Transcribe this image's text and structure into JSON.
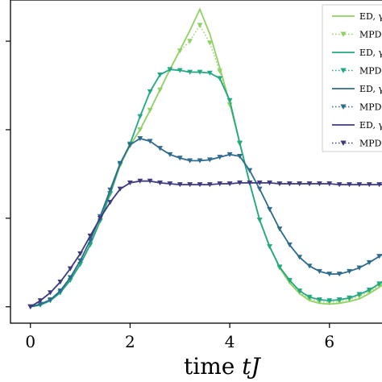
{
  "chart_data": {
    "type": "line",
    "title": "",
    "xlabel": "time tJ",
    "xlabel_parts": [
      "time ",
      "tJ"
    ],
    "ylabel": "",
    "xlim": [
      -0.4,
      7.2
    ],
    "ylim": [
      -0.0185,
      0.3465
    ],
    "xticks": [
      0,
      2,
      4,
      6
    ],
    "xtick_labels": [
      "0",
      "2",
      "4",
      "6"
    ],
    "yticks": [
      0,
      0.1,
      0.2,
      0.3
    ],
    "legend_position": "top-right",
    "legend_labels": [
      "ED, γ",
      "MPDO",
      "ED, γ",
      "MPDO",
      "ED, γ",
      "MPDO",
      "ED, γ",
      "MPDO"
    ],
    "series": [
      {
        "name": "ED, γ",
        "style": "solid",
        "color": "#8fd163",
        "x": [
          0,
          0.2,
          0.4,
          0.6,
          0.8,
          1.0,
          1.2,
          1.4,
          1.6,
          1.8,
          2.0,
          2.2,
          2.4,
          2.6,
          2.8,
          3.0,
          3.2,
          3.4,
          3.6,
          3.8,
          4.0,
          4.2,
          4.4,
          4.6,
          4.8,
          5.0,
          5.2,
          5.4,
          5.6,
          5.8,
          6.0,
          6.2,
          6.4,
          6.6,
          6.8,
          7.0,
          7.2
        ],
        "y": [
          0.0,
          0.002,
          0.007,
          0.016,
          0.03,
          0.048,
          0.07,
          0.097,
          0.127,
          0.16,
          0.182,
          0.2,
          0.222,
          0.245,
          0.268,
          0.29,
          0.312,
          0.336,
          0.308,
          0.27,
          0.23,
          0.185,
          0.14,
          0.098,
          0.068,
          0.044,
          0.027,
          0.015,
          0.007,
          0.004,
          0.003,
          0.004,
          0.006,
          0.009,
          0.015,
          0.022,
          0.03
        ]
      },
      {
        "name": "MPDO",
        "style": "dotted",
        "color": "#8fd163",
        "x": [
          0,
          0.2,
          0.4,
          0.6,
          0.8,
          1.0,
          1.2,
          1.4,
          1.6,
          1.8,
          2.0,
          2.2,
          2.4,
          2.6,
          2.8,
          3.0,
          3.2,
          3.4,
          3.6,
          3.8,
          4.0,
          4.2,
          4.4,
          4.6,
          4.8,
          5.0,
          5.2,
          5.4,
          5.6,
          5.8,
          6.0,
          6.2,
          6.4,
          6.6,
          6.8,
          7.0,
          7.2
        ],
        "y": [
          0.0,
          0.002,
          0.007,
          0.016,
          0.03,
          0.048,
          0.07,
          0.097,
          0.127,
          0.16,
          0.182,
          0.2,
          0.222,
          0.245,
          0.268,
          0.289,
          0.3,
          0.318,
          0.298,
          0.266,
          0.228,
          0.184,
          0.14,
          0.098,
          0.068,
          0.044,
          0.028,
          0.016,
          0.009,
          0.006,
          0.005,
          0.006,
          0.008,
          0.012,
          0.017,
          0.024,
          0.032
        ]
      },
      {
        "name": "ED, γ",
        "style": "solid",
        "color": "#22a884",
        "x": [
          0,
          0.2,
          0.4,
          0.6,
          0.8,
          1.0,
          1.2,
          1.4,
          1.6,
          1.8,
          2.0,
          2.2,
          2.4,
          2.6,
          2.8,
          3.0,
          3.2,
          3.4,
          3.6,
          3.8,
          4.0,
          4.2,
          4.4,
          4.6,
          4.8,
          5.0,
          5.2,
          5.4,
          5.6,
          5.8,
          6.0,
          6.2,
          6.4,
          6.6,
          6.8,
          7.0,
          7.2
        ],
        "y": [
          0.0,
          0.002,
          0.007,
          0.016,
          0.03,
          0.048,
          0.07,
          0.097,
          0.128,
          0.161,
          0.184,
          0.215,
          0.243,
          0.262,
          0.268,
          0.267,
          0.265,
          0.265,
          0.264,
          0.258,
          0.233,
          0.185,
          0.14,
          0.098,
          0.068,
          0.045,
          0.03,
          0.018,
          0.011,
          0.008,
          0.007,
          0.008,
          0.01,
          0.014,
          0.019,
          0.026,
          0.034
        ]
      },
      {
        "name": "MPDO",
        "style": "dotted",
        "color": "#22a884",
        "x": [
          0,
          0.2,
          0.4,
          0.6,
          0.8,
          1.0,
          1.2,
          1.4,
          1.6,
          1.8,
          2.0,
          2.2,
          2.4,
          2.6,
          2.8,
          3.0,
          3.2,
          3.4,
          3.6,
          3.8,
          4.0,
          4.2,
          4.4,
          4.6,
          4.8,
          5.0,
          5.2,
          5.4,
          5.6,
          5.8,
          6.0,
          6.2,
          6.4,
          6.6,
          6.8,
          7.0,
          7.2
        ],
        "y": [
          0.0,
          0.002,
          0.007,
          0.016,
          0.03,
          0.048,
          0.07,
          0.097,
          0.128,
          0.161,
          0.184,
          0.215,
          0.243,
          0.262,
          0.268,
          0.267,
          0.265,
          0.265,
          0.264,
          0.258,
          0.233,
          0.185,
          0.14,
          0.098,
          0.068,
          0.045,
          0.03,
          0.018,
          0.011,
          0.008,
          0.007,
          0.008,
          0.01,
          0.014,
          0.019,
          0.026,
          0.034
        ]
      },
      {
        "name": "ED, γ",
        "style": "solid",
        "color": "#2f6b8e",
        "x": [
          0,
          0.2,
          0.4,
          0.6,
          0.8,
          1.0,
          1.2,
          1.4,
          1.6,
          1.8,
          2.0,
          2.2,
          2.4,
          2.6,
          2.8,
          3.0,
          3.2,
          3.4,
          3.6,
          3.8,
          4.0,
          4.2,
          4.4,
          4.6,
          4.8,
          5.0,
          5.2,
          5.4,
          5.6,
          5.8,
          6.0,
          6.2,
          6.4,
          6.6,
          6.8,
          7.0,
          7.2
        ],
        "y": [
          0.0,
          0.003,
          0.008,
          0.018,
          0.033,
          0.052,
          0.075,
          0.102,
          0.132,
          0.162,
          0.183,
          0.19,
          0.187,
          0.179,
          0.172,
          0.168,
          0.165,
          0.165,
          0.166,
          0.169,
          0.172,
          0.17,
          0.154,
          0.133,
          0.11,
          0.088,
          0.07,
          0.056,
          0.046,
          0.04,
          0.037,
          0.037,
          0.04,
          0.044,
          0.05,
          0.057,
          0.064
        ]
      },
      {
        "name": "MPDO",
        "style": "dotted",
        "color": "#2f6b8e",
        "x": [
          0,
          0.2,
          0.4,
          0.6,
          0.8,
          1.0,
          1.2,
          1.4,
          1.6,
          1.8,
          2.0,
          2.2,
          2.4,
          2.6,
          2.8,
          3.0,
          3.2,
          3.4,
          3.6,
          3.8,
          4.0,
          4.2,
          4.4,
          4.6,
          4.8,
          5.0,
          5.2,
          5.4,
          5.6,
          5.8,
          6.0,
          6.2,
          6.4,
          6.6,
          6.8,
          7.0,
          7.2
        ],
        "y": [
          0.0,
          0.003,
          0.008,
          0.018,
          0.033,
          0.052,
          0.075,
          0.102,
          0.132,
          0.162,
          0.183,
          0.19,
          0.187,
          0.179,
          0.172,
          0.168,
          0.165,
          0.165,
          0.166,
          0.169,
          0.172,
          0.17,
          0.154,
          0.133,
          0.11,
          0.088,
          0.07,
          0.056,
          0.046,
          0.04,
          0.037,
          0.037,
          0.04,
          0.044,
          0.05,
          0.057,
          0.064
        ]
      },
      {
        "name": "ED, γ",
        "style": "solid",
        "color": "#3e3b7e",
        "x": [
          0,
          0.2,
          0.4,
          0.6,
          0.8,
          1.0,
          1.2,
          1.4,
          1.6,
          1.8,
          2.0,
          2.2,
          2.4,
          2.6,
          2.8,
          3.0,
          3.2,
          3.4,
          3.6,
          3.8,
          4.0,
          4.2,
          4.4,
          4.6,
          4.8,
          5.0,
          5.2,
          5.4,
          5.6,
          5.8,
          6.0,
          6.2,
          6.4,
          6.6,
          6.8,
          7.0,
          7.2
        ],
        "y": [
          0.0,
          0.007,
          0.016,
          0.028,
          0.043,
          0.06,
          0.08,
          0.1,
          0.118,
          0.133,
          0.14,
          0.142,
          0.142,
          0.14,
          0.139,
          0.138,
          0.138,
          0.138,
          0.138,
          0.139,
          0.139,
          0.14,
          0.14,
          0.14,
          0.14,
          0.139,
          0.139,
          0.139,
          0.139,
          0.139,
          0.139,
          0.138,
          0.138,
          0.138,
          0.138,
          0.138,
          0.138
        ]
      },
      {
        "name": "MPDO",
        "style": "dotted",
        "color": "#3e3b7e",
        "x": [
          0,
          0.2,
          0.4,
          0.6,
          0.8,
          1.0,
          1.2,
          1.4,
          1.6,
          1.8,
          2.0,
          2.2,
          2.4,
          2.6,
          2.8,
          3.0,
          3.2,
          3.4,
          3.6,
          3.8,
          4.0,
          4.2,
          4.4,
          4.6,
          4.8,
          5.0,
          5.2,
          5.4,
          5.6,
          5.8,
          6.0,
          6.2,
          6.4,
          6.6,
          6.8,
          7.0,
          7.2
        ],
        "y": [
          0.0,
          0.007,
          0.016,
          0.028,
          0.043,
          0.06,
          0.08,
          0.1,
          0.118,
          0.133,
          0.14,
          0.142,
          0.142,
          0.14,
          0.139,
          0.138,
          0.138,
          0.138,
          0.138,
          0.139,
          0.139,
          0.14,
          0.14,
          0.14,
          0.14,
          0.139,
          0.139,
          0.139,
          0.139,
          0.139,
          0.139,
          0.138,
          0.138,
          0.138,
          0.138,
          0.138,
          0.138
        ]
      }
    ]
  }
}
